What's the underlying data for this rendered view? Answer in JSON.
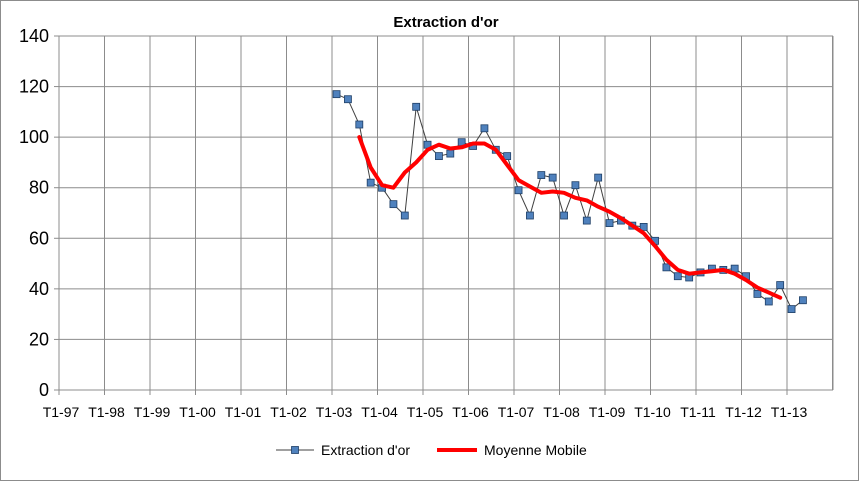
{
  "chart_data": {
    "type": "line",
    "title": "Extraction d'or",
    "xlabel": "",
    "ylabel": "",
    "ylim": [
      0,
      140
    ],
    "yticks": [
      0,
      20,
      40,
      60,
      80,
      100,
      120,
      140
    ],
    "categories": [
      "T1-97",
      "T1-98",
      "T1-99",
      "T1-00",
      "T1-01",
      "T1-02",
      "T1-03",
      "T1-04",
      "T1-05",
      "T1-06",
      "T1-07",
      "T1-08",
      "T1-09",
      "T1-10",
      "T1-11",
      "T1-12",
      "T1-13"
    ],
    "grid": true,
    "legend_position": "bottom",
    "series": [
      {
        "name": "Extraction d'or",
        "color": "#404040",
        "marker": "square",
        "marker_color": "#4f81bd",
        "points": [
          {
            "x": 6.1,
            "y": 117
          },
          {
            "x": 6.35,
            "y": 115
          },
          {
            "x": 6.6,
            "y": 105
          },
          {
            "x": 6.85,
            "y": 82
          },
          {
            "x": 7.1,
            "y": 80
          },
          {
            "x": 7.35,
            "y": 73.5
          },
          {
            "x": 7.6,
            "y": 69
          },
          {
            "x": 7.85,
            "y": 112
          },
          {
            "x": 8.1,
            "y": 97
          },
          {
            "x": 8.35,
            "y": 92.5
          },
          {
            "x": 8.6,
            "y": 93.5
          },
          {
            "x": 8.85,
            "y": 98
          },
          {
            "x": 9.1,
            "y": 96.5
          },
          {
            "x": 9.35,
            "y": 103.5
          },
          {
            "x": 9.6,
            "y": 95
          },
          {
            "x": 9.85,
            "y": 92.5
          },
          {
            "x": 10.1,
            "y": 79
          },
          {
            "x": 10.35,
            "y": 69
          },
          {
            "x": 10.6,
            "y": 85
          },
          {
            "x": 10.85,
            "y": 84
          },
          {
            "x": 11.1,
            "y": 69
          },
          {
            "x": 11.35,
            "y": 81
          },
          {
            "x": 11.6,
            "y": 67
          },
          {
            "x": 11.85,
            "y": 84
          },
          {
            "x": 12.1,
            "y": 66
          },
          {
            "x": 12.35,
            "y": 67
          },
          {
            "x": 12.6,
            "y": 65
          },
          {
            "x": 12.85,
            "y": 64.5
          },
          {
            "x": 13.1,
            "y": 59
          },
          {
            "x": 13.35,
            "y": 48.5
          },
          {
            "x": 13.6,
            "y": 45
          },
          {
            "x": 13.85,
            "y": 44.5
          },
          {
            "x": 14.1,
            "y": 46.5
          },
          {
            "x": 14.35,
            "y": 48
          },
          {
            "x": 14.6,
            "y": 47.5
          },
          {
            "x": 14.85,
            "y": 48
          },
          {
            "x": 15.1,
            "y": 45
          },
          {
            "x": 15.35,
            "y": 38
          },
          {
            "x": 15.6,
            "y": 35
          },
          {
            "x": 15.85,
            "y": 41.5
          },
          {
            "x": 16.1,
            "y": 32
          },
          {
            "x": 16.35,
            "y": 35.5
          }
        ]
      },
      {
        "name": "Moyenne Mobile",
        "color": "#ff0000",
        "marker": "none",
        "points": [
          {
            "x": 6.6,
            "y": 100
          },
          {
            "x": 6.85,
            "y": 88
          },
          {
            "x": 7.1,
            "y": 81
          },
          {
            "x": 7.35,
            "y": 80
          },
          {
            "x": 7.6,
            "y": 86
          },
          {
            "x": 7.85,
            "y": 90
          },
          {
            "x": 8.1,
            "y": 95
          },
          {
            "x": 8.35,
            "y": 97
          },
          {
            "x": 8.6,
            "y": 95.5
          },
          {
            "x": 8.85,
            "y": 96
          },
          {
            "x": 9.1,
            "y": 97.5
          },
          {
            "x": 9.35,
            "y": 97.5
          },
          {
            "x": 9.6,
            "y": 95
          },
          {
            "x": 9.85,
            "y": 89
          },
          {
            "x": 10.1,
            "y": 83
          },
          {
            "x": 10.35,
            "y": 80.5
          },
          {
            "x": 10.6,
            "y": 78
          },
          {
            "x": 10.85,
            "y": 78.5
          },
          {
            "x": 11.1,
            "y": 78
          },
          {
            "x": 11.35,
            "y": 76
          },
          {
            "x": 11.6,
            "y": 75
          },
          {
            "x": 11.85,
            "y": 72.5
          },
          {
            "x": 12.1,
            "y": 70.5
          },
          {
            "x": 12.35,
            "y": 68
          },
          {
            "x": 12.6,
            "y": 65
          },
          {
            "x": 12.85,
            "y": 62
          },
          {
            "x": 13.1,
            "y": 57
          },
          {
            "x": 13.35,
            "y": 51.5
          },
          {
            "x": 13.6,
            "y": 47.5
          },
          {
            "x": 13.85,
            "y": 46
          },
          {
            "x": 14.1,
            "y": 46.5
          },
          {
            "x": 14.35,
            "y": 47
          },
          {
            "x": 14.6,
            "y": 47.5
          },
          {
            "x": 14.85,
            "y": 46
          },
          {
            "x": 15.1,
            "y": 43.5
          },
          {
            "x": 15.35,
            "y": 40.5
          },
          {
            "x": 15.6,
            "y": 38.5
          },
          {
            "x": 15.85,
            "y": 36.5
          }
        ]
      }
    ]
  }
}
